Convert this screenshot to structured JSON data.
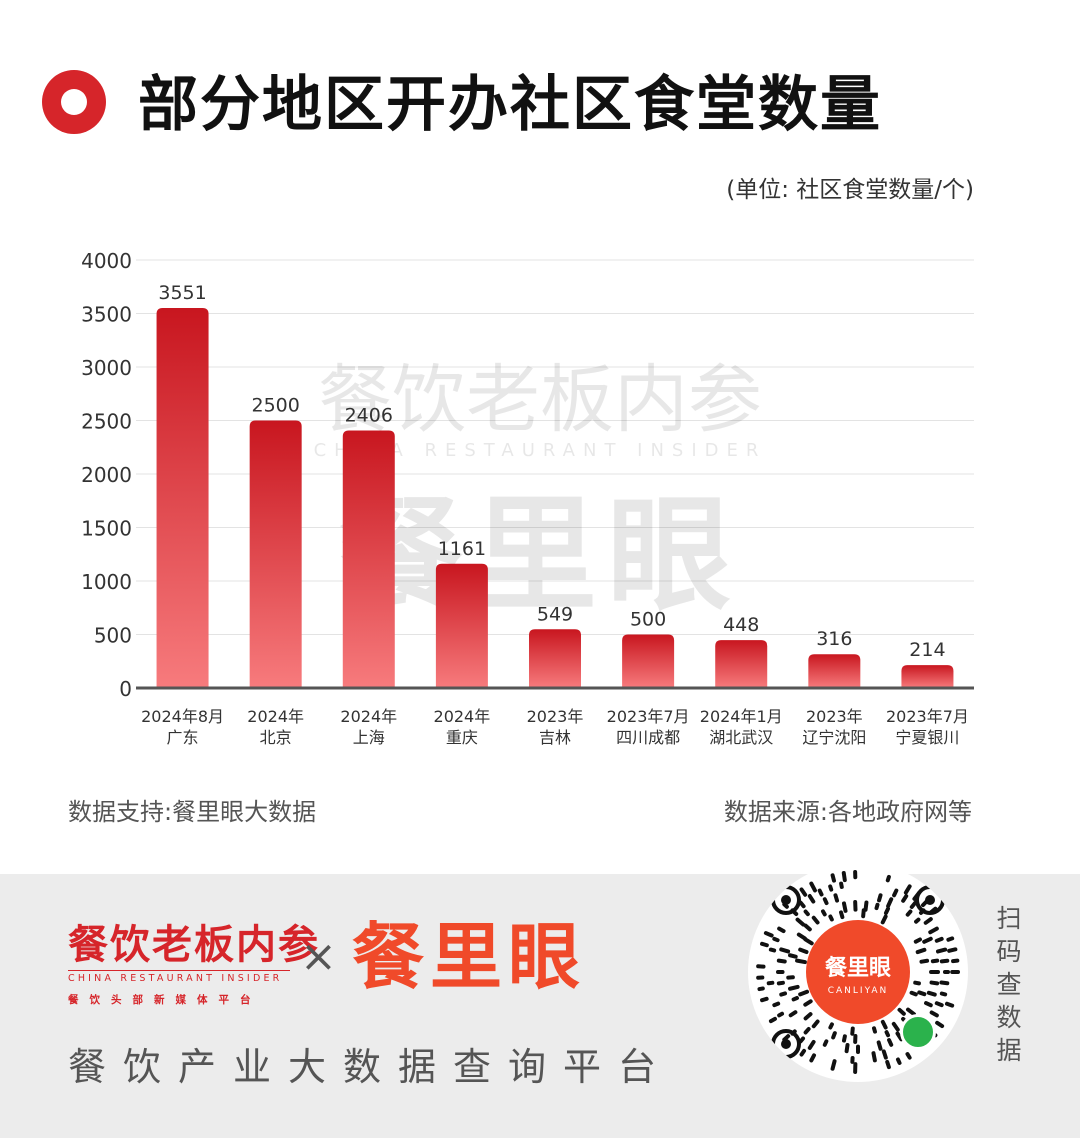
{
  "title": "部分地区开办社区食堂数量",
  "unit_note": "(单位: 社区食堂数量/个)",
  "footer": {
    "data_support": "数据支持:餐里眼大数据",
    "data_source": "数据来源:各地政府网等"
  },
  "watermark": {
    "cn": "餐饮老板内参",
    "en": "CHINA RESTAURANT INSIDER",
    "brand": "餐里眼"
  },
  "bottom": {
    "logo_cn": "餐饮老板内参",
    "logo_en": "CHINA RESTAURANT INSIDER",
    "logo_sub": "餐饮头部新媒体平台",
    "times": "×",
    "brand": "餐里眼",
    "platform": "餐饮产业大数据查询平台",
    "qr_center": "餐里眼",
    "qr_center_en": "CANLIYAN",
    "scan_text": "扫码查数据"
  },
  "colors": {
    "accent": "#d6252a",
    "bar_top": "#c8161f",
    "bar_bottom": "#f77b7d",
    "brand_orange": "#f04a2a"
  },
  "chart_data": {
    "type": "bar",
    "categories": [
      [
        "2024年8月",
        "广东"
      ],
      [
        "2024年",
        "北京"
      ],
      [
        "2024年",
        "上海"
      ],
      [
        "2024年",
        "重庆"
      ],
      [
        "2023年",
        "吉林"
      ],
      [
        "2023年7月",
        "四川成都"
      ],
      [
        "2024年1月",
        "湖北武汉"
      ],
      [
        "2023年",
        "辽宁沈阳"
      ],
      [
        "2023年7月",
        "宁夏银川"
      ]
    ],
    "values": [
      3551,
      2500,
      2406,
      1161,
      549,
      500,
      448,
      316,
      214
    ],
    "yticks": [
      0,
      500,
      1000,
      1500,
      2000,
      2500,
      3000,
      3500,
      4000
    ],
    "ylim": [
      0,
      4000
    ],
    "grid": true,
    "legend": "none"
  }
}
